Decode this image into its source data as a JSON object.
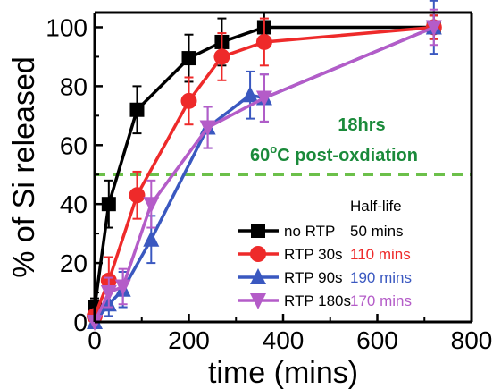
{
  "chart_data": {
    "type": "line",
    "xlabel": "time (mins)",
    "ylabel": "% of Si released",
    "xlim": [
      0,
      800
    ],
    "ylim": [
      0,
      105
    ],
    "xticks": [
      0,
      200,
      400,
      600,
      800
    ],
    "yticks": [
      0,
      20,
      40,
      60,
      80,
      100
    ],
    "grid": false,
    "legend_position": "bottom-right",
    "legend_title": "Half-life",
    "reference_line": {
      "y": 50,
      "color": "#6cc04a",
      "style": "dashed"
    },
    "annotations": [
      "18hrs",
      "60",
      "o",
      "C post-oxdiation"
    ],
    "annotation_color": "#1a8a3a",
    "series": [
      {
        "name": "no RTP",
        "half_life": "50 mins",
        "color": "#000000",
        "label_color": "#000000",
        "marker": "square",
        "x": [
          0,
          30,
          90,
          200,
          270,
          360,
          720
        ],
        "y": [
          5,
          40,
          72,
          89.5,
          95,
          100,
          100
        ],
        "err": [
          3,
          8,
          8,
          8,
          8,
          5,
          4
        ]
      },
      {
        "name": "RTP 30s",
        "half_life": "110 mins",
        "color": "#ee2a2a",
        "label_color": "#ee2a2a",
        "marker": "circle",
        "x": [
          0,
          30,
          90,
          200,
          270,
          360,
          720
        ],
        "y": [
          2,
          14,
          43,
          75,
          90,
          95,
          100
        ],
        "err": [
          2,
          8,
          8,
          8,
          8,
          8,
          4
        ]
      },
      {
        "name": "RTP 90s",
        "half_life": "190 mins",
        "color": "#3a58c0",
        "label_color": "#3a58c0",
        "marker": "triangle-up",
        "x": [
          0,
          30,
          60,
          120,
          240,
          330,
          360,
          720
        ],
        "y": [
          0,
          6,
          11,
          28,
          66,
          77,
          76,
          100
        ],
        "err": [
          2,
          4,
          6,
          8,
          7,
          8,
          8,
          9
        ]
      },
      {
        "name": "RTP 180s",
        "half_life": "170 mins",
        "color": "#b45cc8",
        "label_color": "#b45cc8",
        "marker": "triangle-down",
        "x": [
          0,
          30,
          60,
          120,
          240,
          360,
          720
        ],
        "y": [
          0,
          10,
          12,
          40,
          66,
          76,
          100
        ],
        "err": [
          2,
          5,
          6,
          8,
          7,
          8,
          6
        ]
      }
    ]
  }
}
